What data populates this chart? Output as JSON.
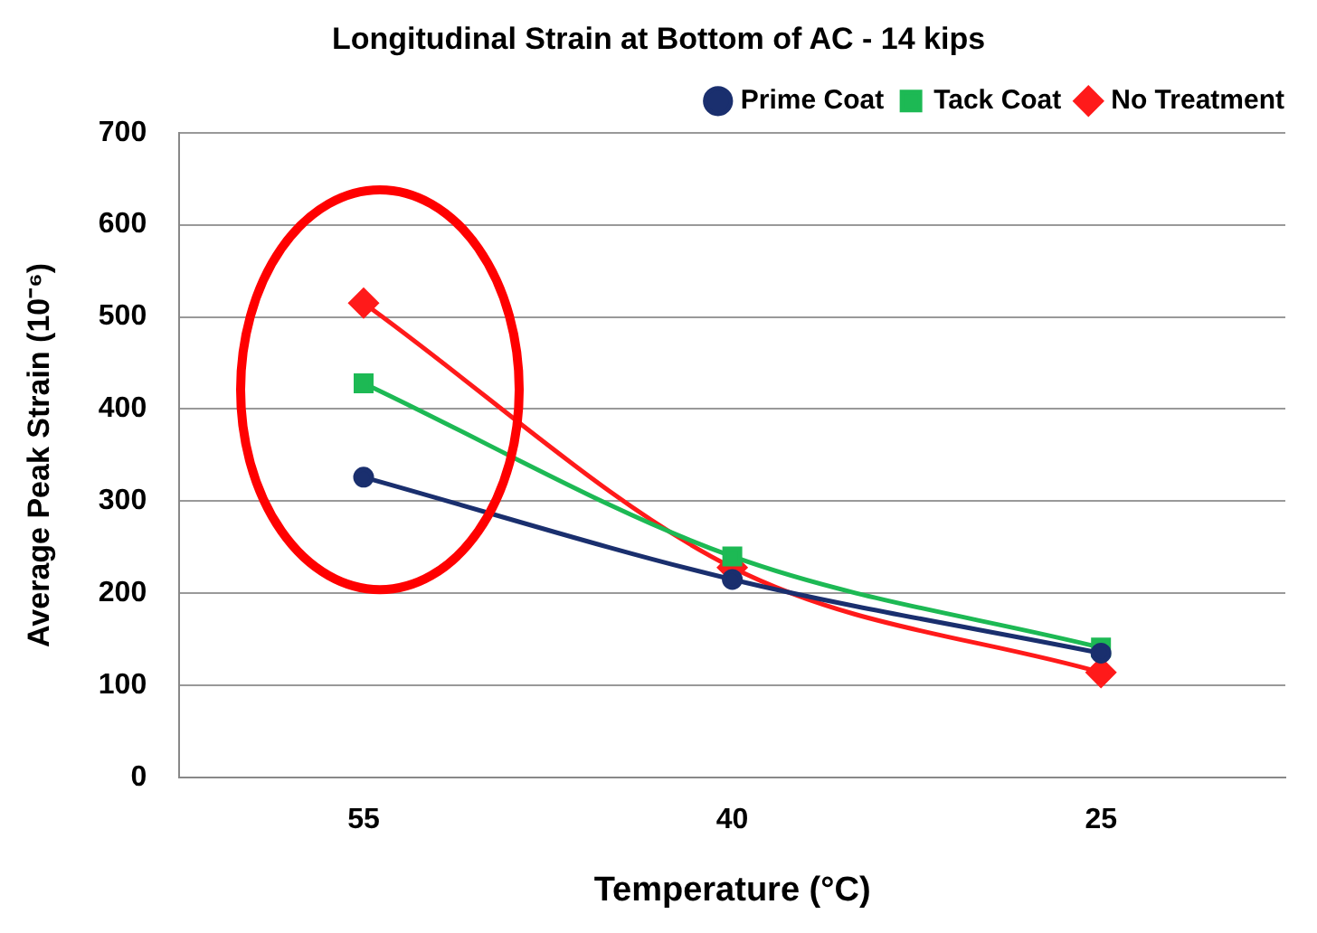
{
  "chart_data": {
    "type": "line",
    "title": "Longitudinal Strain at Bottom of AC - 14 kips",
    "xlabel": "Temperature (°C)",
    "ylabel": "Average Peak Strain (10⁻⁶)",
    "categories": [
      "55",
      "40",
      "25"
    ],
    "series": [
      {
        "name": "Prime Coat",
        "color": "#1a2f6e",
        "values": [
          326,
          215,
          135
        ],
        "marker": "circle"
      },
      {
        "name": "Tack Coat",
        "color": "#1db954",
        "values": [
          428,
          240,
          141
        ],
        "marker": "square"
      },
      {
        "name": "No Treatment",
        "color": "#ff1a1a",
        "values": [
          515,
          228,
          114
        ],
        "marker": "diamond"
      }
    ],
    "ylim": [
      0,
      700
    ],
    "yticks": [
      0,
      100,
      200,
      300,
      400,
      500,
      600,
      700
    ],
    "grid": "y",
    "legend": "top right"
  }
}
